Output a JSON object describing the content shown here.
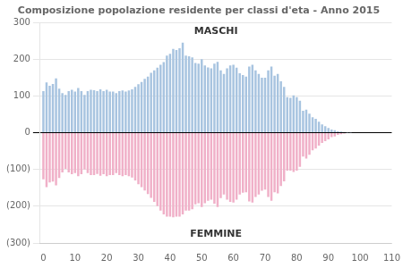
{
  "chart_data": {
    "type": "bar",
    "title": "Composizione popolazione residente per classi d'eta - Anno 2015",
    "annotations": [
      "MASCHI",
      "FEMMINE"
    ],
    "x": [
      0,
      1,
      2,
      3,
      4,
      5,
      6,
      7,
      8,
      9,
      10,
      11,
      12,
      13,
      14,
      15,
      16,
      17,
      18,
      19,
      20,
      21,
      22,
      23,
      24,
      25,
      26,
      27,
      28,
      29,
      30,
      31,
      32,
      33,
      34,
      35,
      36,
      37,
      38,
      39,
      40,
      41,
      42,
      43,
      44,
      45,
      46,
      47,
      48,
      49,
      50,
      51,
      52,
      53,
      54,
      55,
      56,
      57,
      58,
      59,
      60,
      61,
      62,
      63,
      64,
      65,
      66,
      67,
      68,
      69,
      70,
      71,
      72,
      73,
      74,
      75,
      76,
      77,
      78,
      79,
      80,
      81,
      82,
      83,
      84,
      85,
      86,
      87,
      88,
      89,
      90,
      91,
      92,
      93,
      94,
      95,
      96,
      97,
      98,
      99,
      100,
      101,
      102,
      103,
      104,
      105,
      106,
      107,
      108,
      109
    ],
    "series": [
      {
        "color": "#a8c4e0",
        "values": [
          113,
          137,
          128,
          133,
          148,
          120,
          108,
          103,
          113,
          117,
          112,
          122,
          113,
          103,
          113,
          117,
          116,
          113,
          118,
          113,
          117,
          112,
          112,
          108,
          113,
          115,
          112,
          115,
          118,
          125,
          132,
          138,
          147,
          153,
          163,
          170,
          177,
          185,
          192,
          210,
          215,
          228,
          225,
          230,
          245,
          210,
          208,
          205,
          190,
          188,
          200,
          183,
          178,
          175,
          188,
          193,
          170,
          160,
          175,
          183,
          185,
          177,
          162,
          157,
          153,
          180,
          185,
          170,
          160,
          150,
          150,
          170,
          180,
          155,
          160,
          140,
          125,
          97,
          95,
          102,
          97,
          87,
          60,
          63,
          52,
          42,
          38,
          30,
          23,
          18,
          13,
          9,
          7,
          4,
          3,
          2,
          1,
          1,
          0,
          0,
          0,
          0,
          0,
          0,
          0,
          0,
          0,
          0,
          0,
          0
        ]
      },
      {
        "color": "#f0b0c8",
        "values": [
          -127,
          -148,
          -135,
          -133,
          -143,
          -123,
          -108,
          -98,
          -108,
          -113,
          -110,
          -118,
          -113,
          -100,
          -110,
          -115,
          -115,
          -112,
          -117,
          -113,
          -118,
          -115,
          -115,
          -110,
          -115,
          -118,
          -115,
          -118,
          -122,
          -130,
          -140,
          -148,
          -157,
          -167,
          -177,
          -188,
          -200,
          -212,
          -222,
          -228,
          -228,
          -230,
          -228,
          -228,
          -222,
          -212,
          -212,
          -208,
          -195,
          -192,
          -202,
          -192,
          -185,
          -182,
          -193,
          -202,
          -178,
          -168,
          -182,
          -188,
          -190,
          -182,
          -168,
          -163,
          -162,
          -187,
          -190,
          -175,
          -168,
          -158,
          -155,
          -175,
          -185,
          -162,
          -165,
          -145,
          -132,
          -103,
          -103,
          -107,
          -103,
          -93,
          -65,
          -70,
          -60,
          -48,
          -43,
          -35,
          -28,
          -23,
          -18,
          -12,
          -10,
          -6,
          -4,
          -2,
          -1,
          -1,
          0,
          0,
          0,
          0,
          0,
          0,
          0,
          0,
          0,
          0,
          0,
          0
        ]
      }
    ],
    "xlim": [
      -1,
      110
    ],
    "xticks": [
      0,
      10,
      20,
      30,
      40,
      50,
      60,
      70,
      80,
      90,
      100,
      110
    ],
    "ylim": [
      -300,
      300
    ],
    "yticks": [
      {
        "value": -300,
        "label": "(300)"
      },
      {
        "value": -200,
        "label": "(200)"
      },
      {
        "value": -100,
        "label": "(100)"
      },
      0,
      100,
      200,
      300
    ],
    "grid": "y"
  }
}
